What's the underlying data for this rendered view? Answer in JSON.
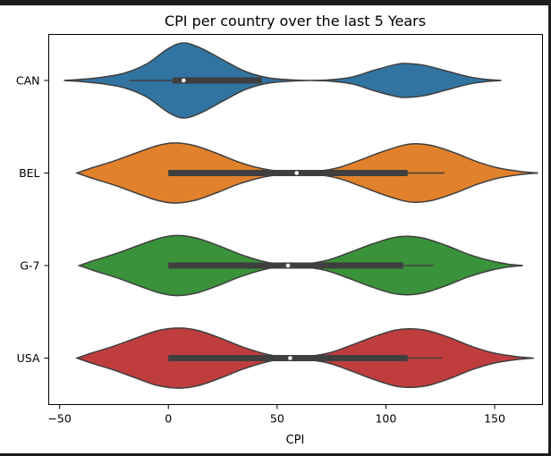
{
  "chart_data": {
    "type": "violin",
    "title": "CPI per country over the last 5 Years",
    "xlabel": "CPI",
    "ylabel": "",
    "xlim": [
      -55,
      172
    ],
    "xticks": [
      -50,
      0,
      50,
      100,
      150
    ],
    "xtick_labels": [
      "−50",
      "0",
      "50",
      "100",
      "150"
    ],
    "categories": [
      "CAN",
      "BEL",
      "G-7",
      "USA"
    ],
    "series": [
      {
        "category": "CAN",
        "color": "#3274a1",
        "range": [
          -48,
          153
        ],
        "whisker": [
          -18,
          43
        ],
        "q1": 2,
        "median": 7,
        "q3": 43,
        "profile": [
          [
            -48,
            0.0
          ],
          [
            -40,
            0.03
          ],
          [
            -30,
            0.09
          ],
          [
            -20,
            0.2
          ],
          [
            -10,
            0.44
          ],
          [
            0,
            0.85
          ],
          [
            7,
            1.0
          ],
          [
            15,
            0.86
          ],
          [
            25,
            0.55
          ],
          [
            35,
            0.25
          ],
          [
            45,
            0.08
          ],
          [
            55,
            0.02
          ],
          [
            65,
            0.0
          ],
          [
            75,
            0.02
          ],
          [
            85,
            0.1
          ],
          [
            95,
            0.28
          ],
          [
            105,
            0.43
          ],
          [
            110,
            0.45
          ],
          [
            118,
            0.4
          ],
          [
            128,
            0.25
          ],
          [
            138,
            0.1
          ],
          [
            146,
            0.03
          ],
          [
            153,
            0.0
          ]
        ]
      },
      {
        "category": "BEL",
        "color": "#e1812c",
        "range": [
          -42,
          170
        ],
        "whisker": [
          0,
          127
        ],
        "q1": 0,
        "median": 59,
        "q3": 110,
        "profile": [
          [
            -42,
            0.0
          ],
          [
            -35,
            0.14
          ],
          [
            -25,
            0.32
          ],
          [
            -15,
            0.53
          ],
          [
            -5,
            0.73
          ],
          [
            3,
            0.8
          ],
          [
            12,
            0.73
          ],
          [
            22,
            0.53
          ],
          [
            32,
            0.3
          ],
          [
            42,
            0.13
          ],
          [
            52,
            0.04
          ],
          [
            60,
            0.02
          ],
          [
            68,
            0.04
          ],
          [
            78,
            0.14
          ],
          [
            88,
            0.34
          ],
          [
            98,
            0.56
          ],
          [
            108,
            0.74
          ],
          [
            114,
            0.78
          ],
          [
            122,
            0.72
          ],
          [
            132,
            0.53
          ],
          [
            142,
            0.3
          ],
          [
            152,
            0.13
          ],
          [
            162,
            0.04
          ],
          [
            170,
            0.0
          ]
        ]
      },
      {
        "category": "G-7",
        "color": "#3a923a",
        "range": [
          -41,
          163
        ],
        "whisker": [
          0,
          122
        ],
        "q1": 0,
        "median": 55,
        "q3": 108,
        "profile": [
          [
            -41,
            0.0
          ],
          [
            -34,
            0.14
          ],
          [
            -24,
            0.32
          ],
          [
            -14,
            0.53
          ],
          [
            -4,
            0.73
          ],
          [
            4,
            0.8
          ],
          [
            13,
            0.73
          ],
          [
            23,
            0.53
          ],
          [
            33,
            0.3
          ],
          [
            43,
            0.12
          ],
          [
            50,
            0.04
          ],
          [
            56,
            0.02
          ],
          [
            63,
            0.04
          ],
          [
            73,
            0.14
          ],
          [
            83,
            0.34
          ],
          [
            93,
            0.56
          ],
          [
            103,
            0.74
          ],
          [
            110,
            0.78
          ],
          [
            118,
            0.72
          ],
          [
            128,
            0.53
          ],
          [
            138,
            0.3
          ],
          [
            148,
            0.13
          ],
          [
            156,
            0.04
          ],
          [
            163,
            0.0
          ]
        ]
      },
      {
        "category": "USA",
        "color": "#c03d3e",
        "range": [
          -42,
          168
        ],
        "whisker": [
          0,
          126
        ],
        "q1": 0,
        "median": 56,
        "q3": 110,
        "profile": [
          [
            -42,
            0.0
          ],
          [
            -35,
            0.14
          ],
          [
            -25,
            0.32
          ],
          [
            -15,
            0.53
          ],
          [
            -5,
            0.73
          ],
          [
            5,
            0.8
          ],
          [
            14,
            0.73
          ],
          [
            24,
            0.53
          ],
          [
            34,
            0.3
          ],
          [
            44,
            0.12
          ],
          [
            51,
            0.04
          ],
          [
            57,
            0.02
          ],
          [
            64,
            0.04
          ],
          [
            74,
            0.14
          ],
          [
            84,
            0.34
          ],
          [
            94,
            0.56
          ],
          [
            104,
            0.74
          ],
          [
            112,
            0.78
          ],
          [
            120,
            0.72
          ],
          [
            130,
            0.53
          ],
          [
            140,
            0.3
          ],
          [
            150,
            0.13
          ],
          [
            160,
            0.04
          ],
          [
            168,
            0.0
          ]
        ]
      }
    ],
    "grid": false,
    "legend": "none"
  }
}
